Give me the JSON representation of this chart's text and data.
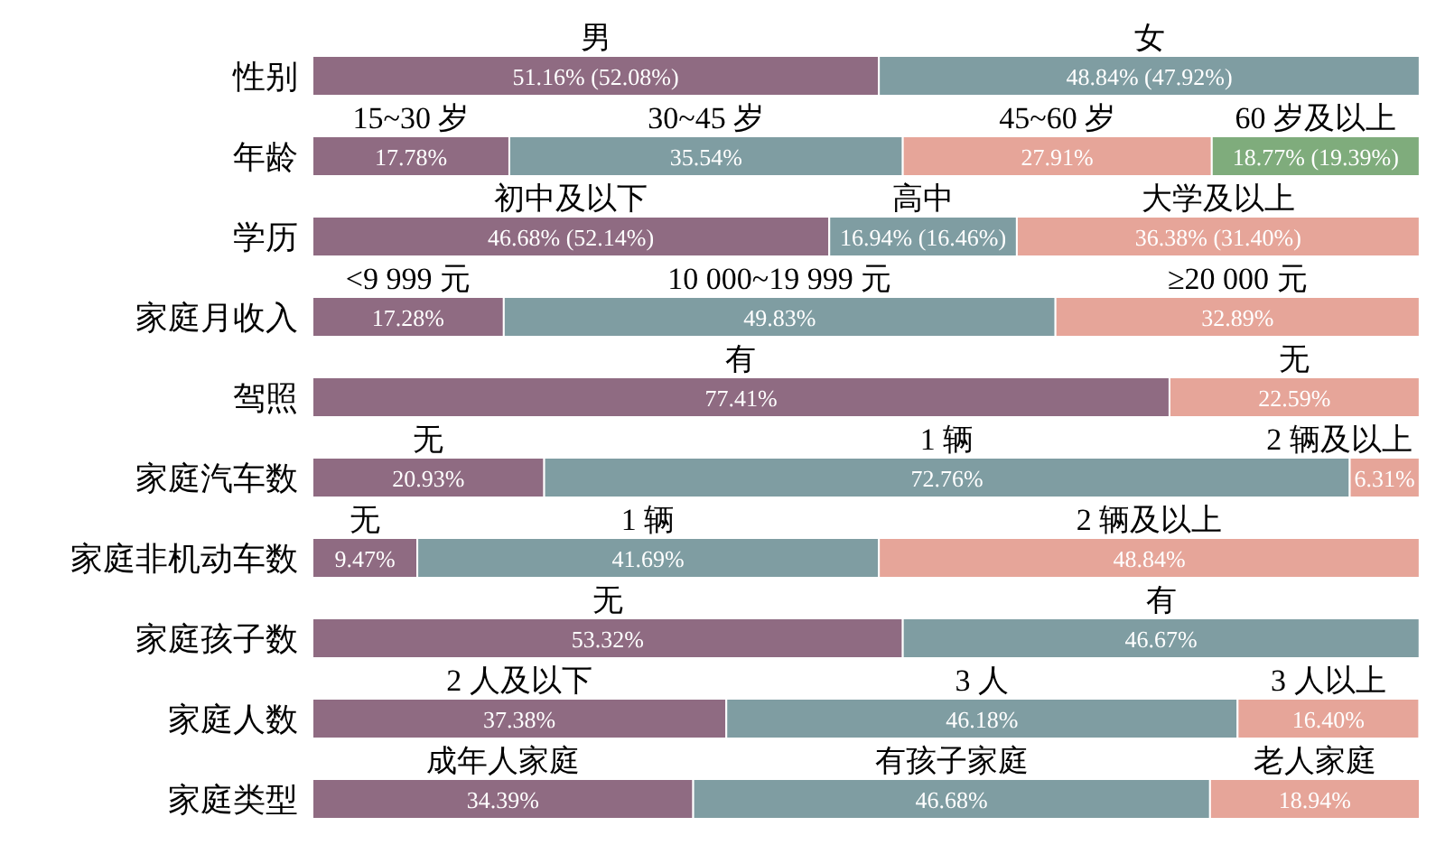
{
  "chart_data": {
    "type": "bar",
    "orientation": "horizontal",
    "stacked": true,
    "categories": [
      "性别",
      "年龄",
      "学历",
      "家庭月收入",
      "驾照",
      "家庭汽车数",
      "家庭非机动车数",
      "家庭孩子数",
      "家庭人数",
      "家庭类型"
    ],
    "series": [
      {
        "values": [
          51.16,
          17.78,
          46.68,
          17.28,
          77.41,
          20.93,
          9.47,
          53.32,
          37.38,
          34.39
        ],
        "colors": [
          "#8f6b82",
          "#8f6b82",
          "#8f6b82",
          "#8f6b82",
          "#8f6b82",
          "#8f6b82",
          "#8f6b82",
          "#8f6b82",
          "#8f6b82",
          "#8f6b82"
        ],
        "value_labels": [
          "51.16% (52.08%)",
          "17.78%",
          "46.68% (52.14%)",
          "17.28%",
          "77.41%",
          "20.93%",
          "9.47%",
          "53.32%",
          "37.38%",
          "34.39%"
        ]
      },
      {
        "values": [
          48.84,
          35.54,
          16.94,
          49.83,
          22.59,
          72.76,
          41.69,
          46.67,
          46.18,
          46.68
        ],
        "colors": [
          "#7f9da2",
          "#7f9da2",
          "#7f9da2",
          "#7f9da2",
          "#e6a599",
          "#7f9da2",
          "#7f9da2",
          "#7f9da2",
          "#7f9da2",
          "#7f9da2"
        ],
        "value_labels": [
          "48.84% (47.92%)",
          "35.54%",
          "16.94% (16.46%)",
          "49.83%",
          "22.59%",
          "72.76%",
          "41.69%",
          "46.67%",
          "46.18%",
          "46.68%"
        ]
      },
      {
        "values": [
          null,
          27.91,
          36.38,
          32.89,
          null,
          6.31,
          48.84,
          null,
          16.4,
          18.94
        ],
        "colors": [
          "#e6a599",
          "#e6a599",
          "#e6a599",
          "#e6a599",
          "#e6a599",
          "#e6a599",
          "#e6a599",
          "#e6a599",
          "#e6a599",
          "#e6a599"
        ],
        "value_labels": [
          null,
          "27.91%",
          "36.38% (31.40%)",
          "32.89%",
          null,
          "6.31%",
          "48.84%",
          null,
          "16.40%",
          "18.94%"
        ]
      },
      {
        "values": [
          null,
          18.77,
          null,
          null,
          null,
          null,
          null,
          null,
          null,
          null
        ],
        "colors": [
          "#7fac7c",
          "#7fac7c",
          "#7fac7c",
          "#7fac7c",
          "#7fac7c",
          "#7fac7c",
          "#7fac7c",
          "#7fac7c",
          "#7fac7c",
          "#7fac7c"
        ],
        "value_labels": [
          null,
          "18.77% (19.39%)",
          null,
          null,
          null,
          null,
          null,
          null,
          null,
          null
        ]
      }
    ],
    "annotations": [
      "男",
      "女",
      "15~30 岁",
      "30~45 岁",
      "45~60 岁",
      "60 岁及以上",
      "初中及以下",
      "高中",
      "大学及以上",
      "<9 999 元",
      "10 000~19 999 元",
      "≥20 000 元",
      "有",
      "无",
      "无",
      "1 辆",
      "2 辆及以上",
      "无",
      "1 辆",
      "2 辆及以上",
      "无",
      "有",
      "2 人及以下",
      "3 人",
      "3 人以上",
      "成年人家庭",
      "有孩子家庭",
      "老人家庭"
    ]
  }
}
